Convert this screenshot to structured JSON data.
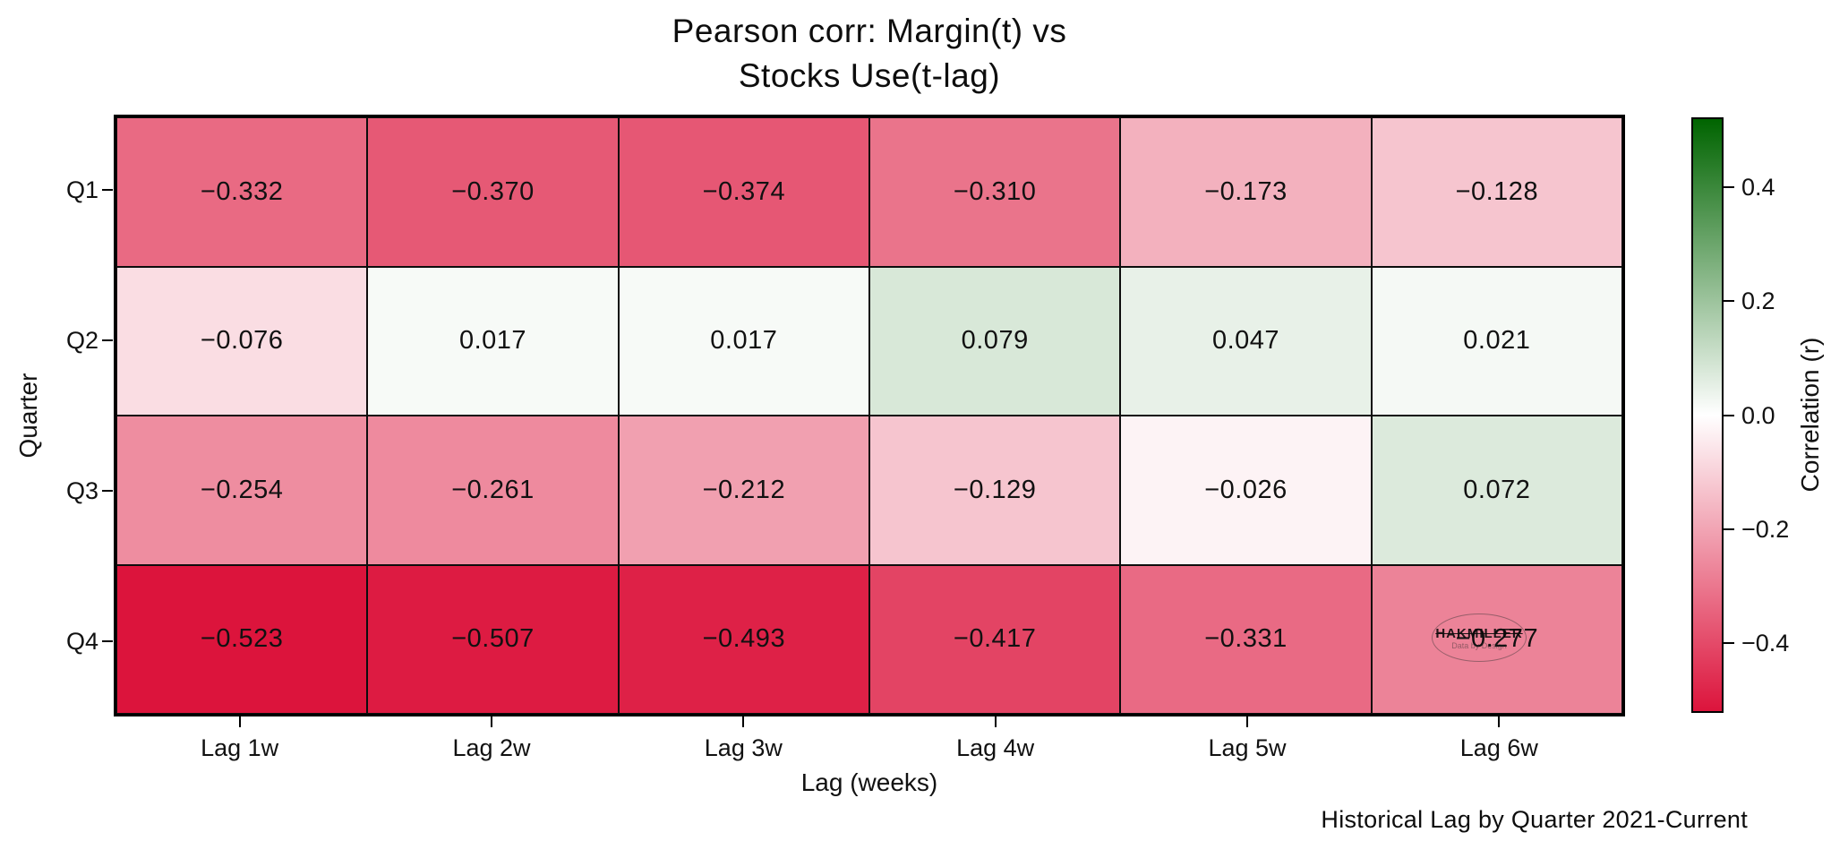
{
  "title_line1": "Pearson corr: Margin(t) vs",
  "title_line2": "Stocks Use(t-lag)",
  "caption": "Historical Lag by Quarter 2021-Current",
  "watermark": {
    "line1": "HAKMILLER",
    "line2": "Data by Design"
  },
  "chart_data": {
    "type": "heatmap",
    "title": "Pearson corr: Margin(t) vs Stocks Use(t-lag)",
    "xlabel": "Lag (weeks)",
    "ylabel": "Quarter",
    "x_categories": [
      "Lag 1w",
      "Lag 2w",
      "Lag 3w",
      "Lag 4w",
      "Lag 5w",
      "Lag 6w"
    ],
    "y_categories": [
      "Q1",
      "Q2",
      "Q3",
      "Q4"
    ],
    "values": [
      [
        -0.332,
        -0.37,
        -0.374,
        -0.31,
        -0.173,
        -0.128
      ],
      [
        -0.076,
        0.017,
        0.017,
        0.079,
        0.047,
        0.021
      ],
      [
        -0.254,
        -0.261,
        -0.212,
        -0.129,
        -0.026,
        0.072
      ],
      [
        -0.523,
        -0.507,
        -0.493,
        -0.417,
        -0.331,
        -0.277
      ]
    ],
    "value_decimals": 3,
    "annotation_color": "#111111",
    "grid_on": true,
    "colorbar": {
      "label": "Correlation (r)",
      "ticks": [
        0.4,
        0.2,
        0.0,
        -0.2,
        -0.4
      ],
      "vmin": -0.523,
      "vmax": 0.523,
      "colormap_stops": [
        "#DC143C",
        "#FFFFFF",
        "#006400"
      ],
      "position": "right"
    }
  }
}
